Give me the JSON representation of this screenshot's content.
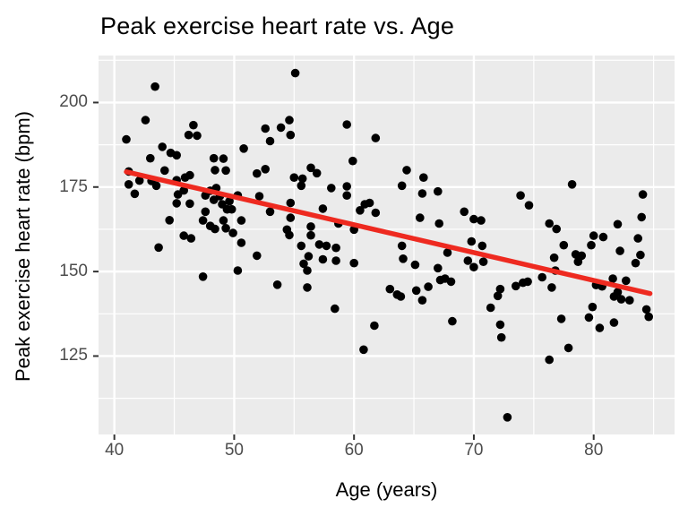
{
  "title": "Peak exercise heart rate vs. Age",
  "chart_data": {
    "type": "scatter",
    "title": "Peak exercise heart rate vs. Age",
    "xlabel": "Age (years)",
    "ylabel": "Peak exercise heart rate (bpm)",
    "xlim": [
      38.68,
      86.75
    ],
    "ylim": [
      101.8,
      213.9
    ],
    "x_ticks": [
      40,
      50,
      60,
      70,
      80
    ],
    "y_ticks": [
      125,
      150,
      175,
      200
    ],
    "x_minor_ticks": [
      45,
      55,
      65,
      75,
      85
    ],
    "y_minor_ticks": [
      112.5,
      137.5,
      162.5,
      187.5,
      212.5
    ],
    "grid": true,
    "legend_position": "none",
    "colors": {
      "panel_background": "#EBEBEB",
      "grid_major": "#FFFFFF",
      "grid_minor": "#FFFFFF",
      "point": "#000000",
      "trend_line": "#EE2A20",
      "tick_mark": "#333333",
      "tick_label": "#4D4D4D",
      "title_text": "#000000"
    },
    "trend_line": {
      "type": "linear",
      "x1": 41.0,
      "y1": 179.5,
      "x2": 84.7,
      "y2": 143.5
    },
    "points": [
      [
        43.4,
        204.7
      ],
      [
        42.6,
        194.8
      ],
      [
        41.0,
        189.1
      ],
      [
        46.6,
        193.3
      ],
      [
        46.2,
        190.4
      ],
      [
        46.9,
        190.2
      ],
      [
        52.6,
        192.3
      ],
      [
        53.9,
        192.6
      ],
      [
        54.6,
        194.8
      ],
      [
        54.7,
        190.4
      ],
      [
        53.0,
        188.6
      ],
      [
        50.8,
        186.4
      ],
      [
        44.0,
        186.9
      ],
      [
        44.7,
        185.1
      ],
      [
        45.2,
        184.4
      ],
      [
        43.0,
        183.5
      ],
      [
        44.2,
        179.9
      ],
      [
        48.3,
        183.5
      ],
      [
        49.1,
        183.4
      ],
      [
        48.4,
        180.0
      ],
      [
        49.3,
        179.9
      ],
      [
        52.6,
        180.3
      ],
      [
        51.9,
        179.0
      ],
      [
        41.2,
        179.6
      ],
      [
        42.1,
        176.9
      ],
      [
        43.1,
        176.8
      ],
      [
        45.2,
        177.0
      ],
      [
        45.9,
        177.8
      ],
      [
        46.3,
        178.5
      ],
      [
        55.1,
        208.7
      ],
      [
        59.4,
        193.5
      ],
      [
        61.8,
        189.5
      ],
      [
        59.9,
        182.7
      ],
      [
        56.4,
        180.7
      ],
      [
        56.9,
        179.1
      ],
      [
        64.4,
        180.0
      ],
      [
        65.8,
        177.8
      ],
      [
        55.0,
        177.8
      ],
      [
        55.7,
        177.5
      ],
      [
        41.2,
        175.8
      ],
      [
        41.7,
        173.0
      ],
      [
        43.5,
        175.4
      ],
      [
        45.3,
        172.8
      ],
      [
        45.8,
        174.0
      ],
      [
        46.3,
        170.1
      ],
      [
        47.6,
        172.5
      ],
      [
        48.0,
        173.9
      ],
      [
        48.5,
        174.7
      ],
      [
        48.8,
        172.3
      ],
      [
        48.3,
        171.2
      ],
      [
        49.0,
        169.9
      ],
      [
        49.6,
        170.8
      ],
      [
        49.4,
        168.4
      ],
      [
        47.6,
        167.7
      ],
      [
        47.4,
        165.1
      ],
      [
        48.0,
        163.5
      ],
      [
        48.4,
        162.6
      ],
      [
        49.1,
        165.1
      ],
      [
        49.3,
        162.8
      ],
      [
        49.8,
        168.4
      ],
      [
        50.3,
        172.5
      ],
      [
        50.6,
        165.1
      ],
      [
        49.9,
        161.4
      ],
      [
        45.8,
        160.6
      ],
      [
        46.4,
        159.8
      ],
      [
        43.7,
        157.1
      ],
      [
        44.6,
        165.2
      ],
      [
        45.2,
        170.2
      ],
      [
        50.6,
        158.5
      ],
      [
        51.9,
        154.7
      ],
      [
        47.4,
        148.5
      ],
      [
        50.3,
        150.3
      ],
      [
        52.1,
        172.3
      ],
      [
        53.0,
        167.7
      ],
      [
        54.4,
        162.4
      ],
      [
        54.6,
        160.8
      ],
      [
        53.6,
        146.1
      ],
      [
        55.6,
        175.4
      ],
      [
        58.1,
        174.7
      ],
      [
        59.4,
        175.2
      ],
      [
        59.4,
        172.5
      ],
      [
        64.0,
        175.4
      ],
      [
        65.7,
        173.1
      ],
      [
        67.0,
        173.7
      ],
      [
        54.7,
        170.3
      ],
      [
        57.4,
        168.6
      ],
      [
        60.5,
        168.1
      ],
      [
        60.9,
        169.9
      ],
      [
        61.3,
        170.3
      ],
      [
        61.8,
        167.4
      ],
      [
        58.7,
        164.2
      ],
      [
        56.4,
        163.3
      ],
      [
        56.4,
        160.7
      ],
      [
        55.6,
        157.6
      ],
      [
        56.2,
        154.5
      ],
      [
        57.1,
        158.0
      ],
      [
        57.7,
        157.6
      ],
      [
        58.5,
        157.0
      ],
      [
        57.4,
        153.6
      ],
      [
        58.5,
        153.2
      ],
      [
        55.8,
        152.3
      ],
      [
        56.1,
        150.3
      ],
      [
        60.0,
        162.4
      ],
      [
        60.0,
        152.5
      ],
      [
        64.0,
        157.6
      ],
      [
        64.1,
        153.8
      ],
      [
        65.5,
        165.9
      ],
      [
        67.1,
        164.2
      ],
      [
        65.1,
        152.0
      ],
      [
        67.0,
        151.0
      ],
      [
        67.8,
        155.6
      ],
      [
        69.2,
        167.7
      ],
      [
        70.0,
        165.5
      ],
      [
        70.6,
        165.1
      ],
      [
        69.8,
        158.9
      ],
      [
        70.7,
        157.6
      ],
      [
        69.5,
        153.2
      ],
      [
        70.0,
        151.3
      ],
      [
        63.0,
        144.8
      ],
      [
        63.6,
        143.2
      ],
      [
        63.9,
        142.6
      ],
      [
        65.2,
        144.4
      ],
      [
        65.7,
        141.5
      ],
      [
        66.2,
        145.5
      ],
      [
        67.2,
        147.5
      ],
      [
        67.6,
        147.9
      ],
      [
        68.1,
        147.0
      ],
      [
        56.1,
        145.3
      ],
      [
        54.7,
        165.9
      ],
      [
        78.2,
        175.8
      ],
      [
        73.9,
        172.5
      ],
      [
        74.6,
        169.6
      ],
      [
        84.1,
        172.8
      ],
      [
        84.0,
        166.1
      ],
      [
        76.3,
        164.2
      ],
      [
        76.9,
        162.6
      ],
      [
        82.0,
        164.0
      ],
      [
        80.0,
        160.6
      ],
      [
        80.8,
        160.2
      ],
      [
        77.5,
        157.8
      ],
      [
        79.8,
        157.8
      ],
      [
        83.7,
        159.8
      ],
      [
        82.2,
        156.1
      ],
      [
        83.9,
        154.9
      ],
      [
        78.5,
        155.1
      ],
      [
        79.0,
        154.7
      ],
      [
        78.7,
        152.9
      ],
      [
        76.7,
        154.1
      ],
      [
        76.8,
        150.3
      ],
      [
        75.7,
        148.3
      ],
      [
        76.5,
        145.3
      ],
      [
        74.1,
        146.7
      ],
      [
        74.5,
        147.0
      ],
      [
        73.5,
        145.7
      ],
      [
        72.2,
        144.8
      ],
      [
        72.0,
        142.8
      ],
      [
        83.5,
        152.5
      ],
      [
        82.7,
        147.3
      ],
      [
        81.6,
        147.9
      ],
      [
        82.0,
        143.9
      ],
      [
        81.7,
        142.6
      ],
      [
        82.3,
        141.8
      ],
      [
        83.0,
        141.5
      ],
      [
        80.2,
        146.0
      ],
      [
        80.7,
        145.6
      ],
      [
        70.8,
        152.9
      ],
      [
        58.4,
        139.0
      ],
      [
        61.7,
        134.0
      ],
      [
        60.8,
        126.9
      ],
      [
        68.2,
        135.3
      ],
      [
        71.4,
        139.3
      ],
      [
        72.2,
        134.3
      ],
      [
        72.3,
        130.5
      ],
      [
        77.3,
        136.0
      ],
      [
        79.6,
        136.4
      ],
      [
        79.9,
        139.5
      ],
      [
        80.5,
        133.3
      ],
      [
        81.7,
        134.9
      ],
      [
        84.4,
        138.8
      ],
      [
        84.6,
        136.6
      ],
      [
        77.9,
        127.4
      ],
      [
        76.3,
        123.9
      ],
      [
        72.8,
        106.9
      ]
    ]
  }
}
